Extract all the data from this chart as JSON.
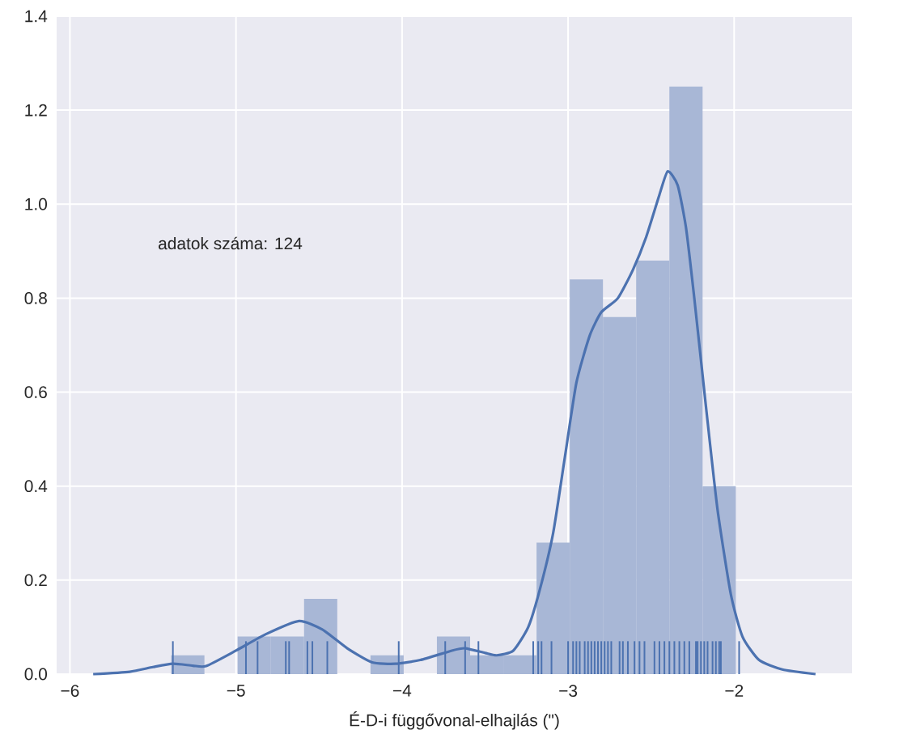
{
  "chart_data": {
    "type": "histogram",
    "xlabel": "É-D-i függővonal-elhajlás (\")",
    "annotations": [
      "adatok száma: 124"
    ],
    "bins": [
      -5.39,
      -5.19,
      -4.99,
      -4.79,
      -4.59,
      -4.39,
      -4.19,
      -3.99,
      -3.79,
      -3.59,
      -3.39,
      -3.19,
      -2.99,
      -2.79,
      -2.59,
      -2.39,
      -2.19,
      -1.99
    ],
    "values": [
      0.04,
      0,
      0.08,
      0.08,
      0.16,
      0,
      0.04,
      0,
      0.08,
      0.04,
      0.04,
      0.28,
      0.84,
      0.76,
      0.88,
      1.25,
      0.4
    ],
    "color": "#a8b7d6",
    "series": [
      {
        "type": "line",
        "color": "#4c72b0",
        "x": [
          -5.86,
          -5.64,
          -5.5,
          -5.38,
          -5.26,
          -5.18,
          -5.0,
          -4.82,
          -4.62,
          -4.48,
          -4.33,
          -4.18,
          -4.04,
          -3.89,
          -3.7,
          -3.62,
          -3.5,
          -3.43,
          -3.33,
          -3.24,
          -3.17,
          -3.09,
          -3.02,
          -2.95,
          -2.87,
          -2.8,
          -2.7,
          -2.61,
          -2.53,
          -2.45,
          -2.4,
          -2.34,
          -2.29,
          -2.24,
          -2.17,
          -2.1,
          -2.02,
          -1.95,
          -1.85,
          -1.71,
          -1.51
        ],
        "values": [
          0.0,
          0.005,
          0.015,
          0.022,
          0.018,
          0.017,
          0.05,
          0.085,
          0.113,
          0.095,
          0.055,
          0.025,
          0.022,
          0.03,
          0.05,
          0.055,
          0.045,
          0.04,
          0.05,
          0.1,
          0.18,
          0.3,
          0.46,
          0.62,
          0.72,
          0.77,
          0.8,
          0.86,
          0.93,
          1.02,
          1.07,
          1.04,
          0.95,
          0.8,
          0.57,
          0.35,
          0.17,
          0.08,
          0.03,
          0.01,
          0.0
        ]
      },
      {
        "type": "bar",
        "color": "#4c72b0",
        "x": [
          -5.38,
          -4.94,
          -4.87,
          -4.7,
          -4.68,
          -4.57,
          -4.54,
          -4.45,
          -4.02,
          -3.74,
          -3.62,
          -3.54,
          -3.21,
          -3.18,
          -3.16,
          -3.1,
          -3.0,
          -2.97,
          -2.95,
          -2.93,
          -2.9,
          -2.88,
          -2.86,
          -2.84,
          -2.82,
          -2.8,
          -2.78,
          -2.76,
          -2.74,
          -2.69,
          -2.67,
          -2.64,
          -2.6,
          -2.57,
          -2.54,
          -2.48,
          -2.45,
          -2.42,
          -2.39,
          -2.36,
          -2.33,
          -2.3,
          -2.27,
          -2.23,
          -2.22,
          -2.2,
          -2.18,
          -2.16,
          -2.13,
          -2.11,
          -2.09,
          -2.08,
          -1.97
        ],
        "values": [
          0.07,
          0.07,
          0.07,
          0.07,
          0.07,
          0.07,
          0.07,
          0.07,
          0.07,
          0.07,
          0.07,
          0.07,
          0.07,
          0.07,
          0.07,
          0.07,
          0.07,
          0.07,
          0.07,
          0.07,
          0.07,
          0.07,
          0.07,
          0.07,
          0.07,
          0.07,
          0.07,
          0.07,
          0.07,
          0.07,
          0.07,
          0.07,
          0.07,
          0.07,
          0.07,
          0.07,
          0.07,
          0.07,
          0.07,
          0.07,
          0.07,
          0.07,
          0.07,
          0.07,
          0.07,
          0.07,
          0.07,
          0.07,
          0.07,
          0.07,
          0.07,
          0.07,
          0.07
        ]
      }
    ],
    "xlim": [
      -6.08,
      -1.29
    ],
    "ylim": [
      0,
      1.4
    ],
    "xticks": [
      {
        "value": -6,
        "label": "−6"
      },
      {
        "value": -5,
        "label": "−5"
      },
      {
        "value": -4,
        "label": "−4"
      },
      {
        "value": -3,
        "label": "−3"
      },
      {
        "value": -2,
        "label": "−2"
      }
    ],
    "yticks": [
      {
        "value": 0,
        "label": "0.0"
      },
      {
        "value": 0.2,
        "label": "0.2"
      },
      {
        "value": 0.4,
        "label": "0.4"
      },
      {
        "value": 0.6,
        "label": "0.6"
      },
      {
        "value": 0.8,
        "label": "0.8"
      },
      {
        "value": 1.0,
        "label": "1.0"
      },
      {
        "value": 1.2,
        "label": "1.2"
      },
      {
        "value": 1.4,
        "label": "1.4"
      }
    ],
    "grid": true
  }
}
